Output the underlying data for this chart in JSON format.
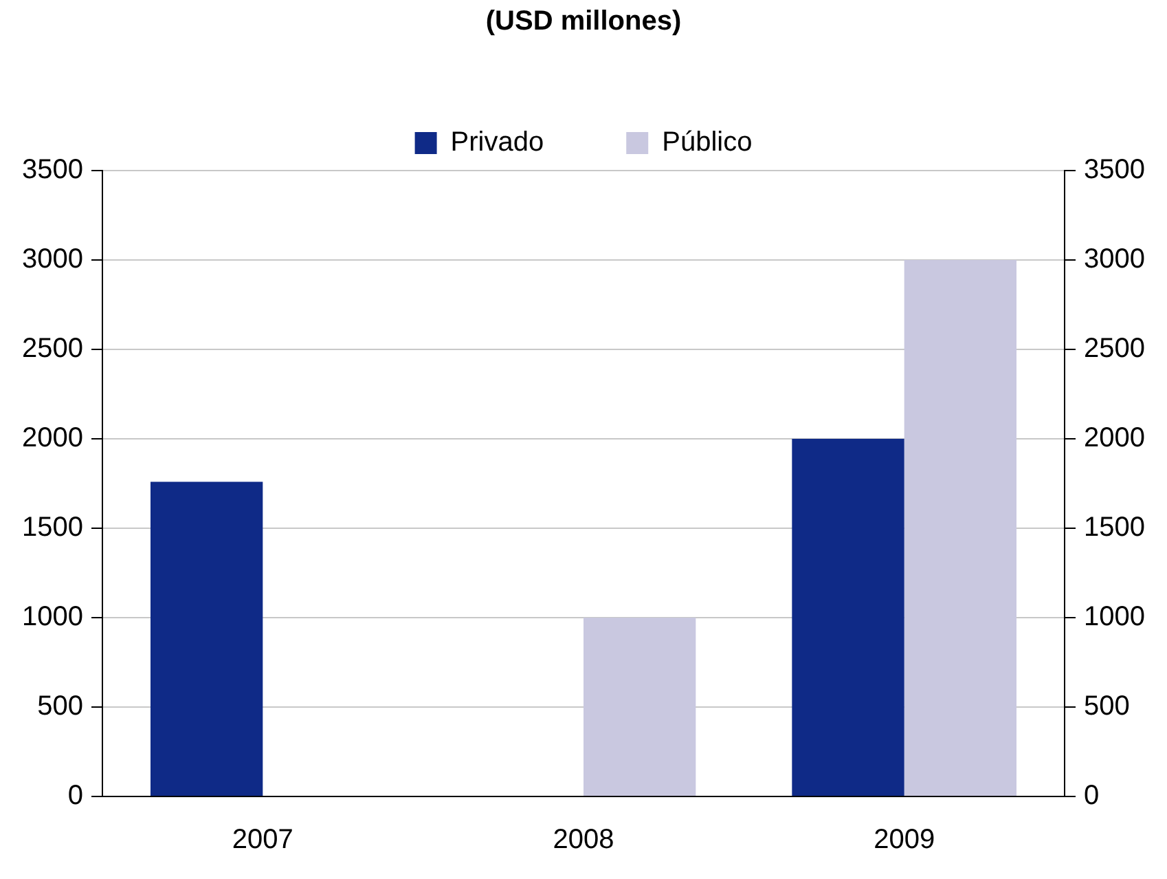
{
  "chart_data": {
    "type": "bar",
    "title": "(USD millones)",
    "categories": [
      "2007",
      "2008",
      "2009"
    ],
    "series": [
      {
        "name": "Privado",
        "color": "#0f2a87",
        "values": [
          1760,
          null,
          2000
        ]
      },
      {
        "name": "Público",
        "color": "#c9c8e0",
        "values": [
          null,
          1000,
          3000
        ]
      }
    ],
    "ylim": [
      0,
      3500
    ],
    "yticks": [
      0,
      500,
      1000,
      1500,
      2000,
      2500,
      3000,
      3500
    ],
    "y2lim": [
      0,
      3500
    ],
    "y2ticks": [
      0,
      500,
      1000,
      1500,
      2000,
      2500,
      3000,
      3500
    ],
    "grid": "y",
    "legend": "top"
  }
}
